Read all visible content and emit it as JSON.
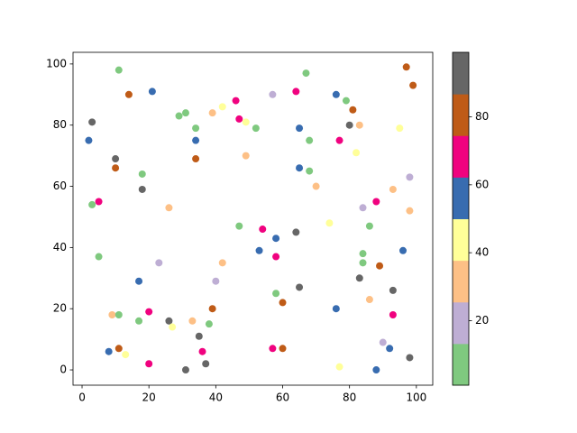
{
  "chart_data": {
    "type": "scatter",
    "x": [
      11,
      21,
      14,
      3,
      2,
      10,
      10,
      18,
      18,
      5,
      3,
      5,
      17,
      23,
      9,
      11,
      17,
      20,
      8,
      11,
      13,
      20,
      26,
      27,
      31,
      33,
      35,
      36,
      37,
      38,
      39,
      40,
      42,
      26,
      29,
      31,
      34,
      34,
      34,
      39,
      42,
      46,
      47,
      49,
      52,
      49,
      47,
      54,
      53,
      58,
      58,
      58,
      60,
      57,
      60,
      57,
      64,
      67,
      65,
      68,
      65,
      68,
      70,
      64,
      65,
      74,
      76,
      79,
      81,
      80,
      83,
      77,
      82,
      84,
      88,
      86,
      84,
      84,
      83,
      89,
      86,
      76,
      77,
      88,
      90,
      92,
      93,
      93,
      93,
      95,
      97,
      99,
      98,
      98,
      96,
      98
    ],
    "y": [
      98,
      91,
      90,
      81,
      75,
      69,
      66,
      64,
      59,
      55,
      54,
      37,
      29,
      35,
      18,
      18,
      16,
      19,
      6,
      7,
      5,
      2,
      16,
      14,
      0,
      16,
      11,
      6,
      2,
      15,
      20,
      29,
      35,
      53,
      83,
      84,
      79,
      75,
      69,
      84,
      86,
      88,
      82,
      81,
      79,
      70,
      47,
      46,
      39,
      43,
      37,
      25,
      22,
      7,
      7,
      90,
      91,
      97,
      79,
      75,
      66,
      65,
      60,
      45,
      27,
      48,
      90,
      88,
      85,
      80,
      80,
      75,
      71,
      53,
      55,
      47,
      38,
      35,
      30,
      34,
      23,
      20,
      1,
      0,
      9,
      7,
      26,
      18,
      59,
      79,
      99,
      93,
      63,
      52,
      39,
      4
    ],
    "c": [
      7,
      56,
      80,
      93,
      56,
      93,
      80,
      7,
      93,
      68,
      7,
      7,
      56,
      19,
      31,
      7,
      7,
      68,
      56,
      80,
      44,
      68,
      93,
      44,
      93,
      31,
      93,
      68,
      93,
      7,
      80,
      19,
      31,
      31,
      7,
      7,
      7,
      56,
      80,
      31,
      44,
      68,
      68,
      44,
      7,
      31,
      7,
      68,
      56,
      56,
      68,
      7,
      80,
      68,
      80,
      19,
      68,
      7,
      56,
      7,
      56,
      7,
      31,
      93,
      93,
      44,
      56,
      7,
      80,
      93,
      31,
      68,
      44,
      19,
      68,
      7,
      7,
      7,
      93,
      80,
      31,
      56,
      44,
      56,
      19,
      56,
      93,
      68,
      31,
      44,
      80,
      80,
      19,
      31,
      56,
      93
    ],
    "colormap": [
      "#7fc97f",
      "#beaed4",
      "#fdc086",
      "#ffff99",
      "#386cb0",
      "#f0027f",
      "#bf5b17",
      "#666666"
    ],
    "clim": [
      1,
      99
    ],
    "cticks": [
      20,
      40,
      60,
      80
    ],
    "xlim": [
      -2.7,
      104.9
    ],
    "ylim": [
      -5,
      103.8
    ],
    "xticks": [
      0,
      20,
      40,
      60,
      80,
      100
    ],
    "yticks": [
      0,
      20,
      40,
      60,
      80,
      100
    ]
  }
}
